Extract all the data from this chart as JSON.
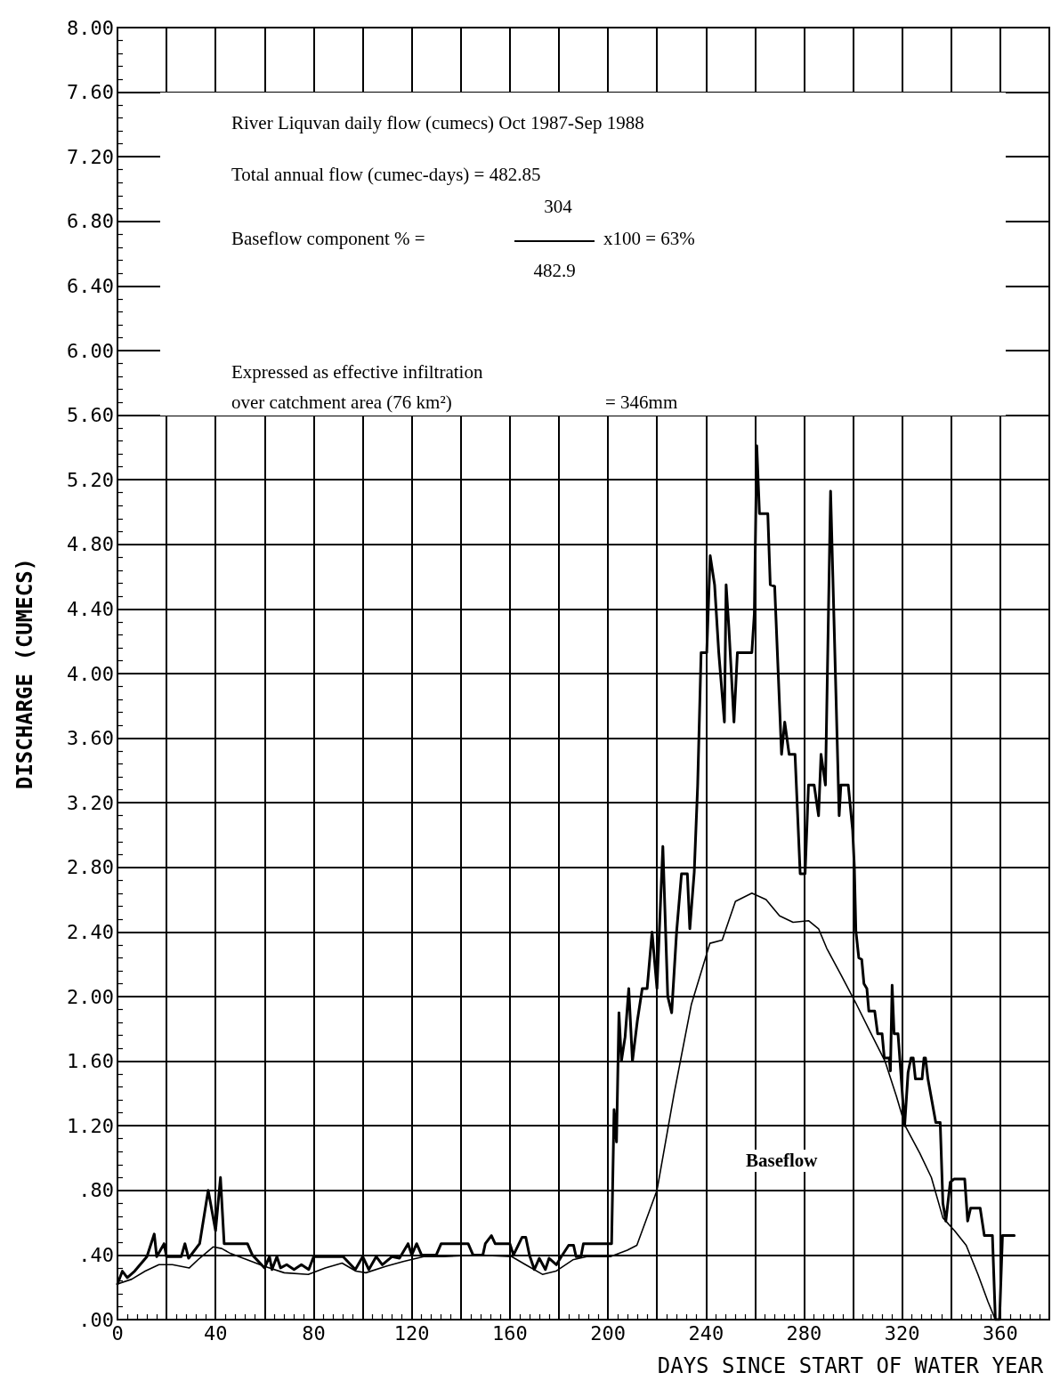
{
  "chart_data": {
    "type": "line",
    "xlabel": "DAYS SINCE START OF WATER YEAR",
    "ylabel": "DISCHARGE (CUMECS)",
    "annotations": [
      "River Liquvan daily flow (cumecs) Oct 1987-Sep 1988",
      "Total annual flow (cumec-days) = 482.85",
      "Baseflow component % =",
      "304",
      "482.9",
      "x100 = 63%",
      "Expressed as effective infiltration",
      "over catchment area (76 km²)",
      "= 346mm"
    ],
    "xlim": [
      0,
      380
    ],
    "xticks": [
      0,
      {
        "value": 20,
        "label": null
      },
      40,
      {
        "value": 60,
        "label": null
      },
      80,
      {
        "value": 100,
        "label": null
      },
      120,
      {
        "value": 140,
        "label": null
      },
      160,
      {
        "value": 180,
        "label": null
      },
      200,
      {
        "value": 220,
        "label": null
      },
      240,
      {
        "value": 260,
        "label": null
      },
      280,
      {
        "value": 300,
        "label": null
      },
      320,
      {
        "value": 340,
        "label": null
      },
      360,
      {
        "value": 380,
        "label": null
      }
    ],
    "ylim": [
      0,
      8
    ],
    "yticks": [
      {
        "value": 0,
        "label": ".00"
      },
      {
        "value": 0.4,
        "label": ".40"
      },
      {
        "value": 0.8,
        "label": ".80"
      },
      {
        "value": 1.2,
        "label": "1.20"
      },
      {
        "value": 1.6,
        "label": "1.60"
      },
      {
        "value": 2,
        "label": "2.00"
      },
      {
        "value": 2.4,
        "label": "2.40"
      },
      {
        "value": 2.8,
        "label": "2.80"
      },
      {
        "value": 3.2,
        "label": "3.20"
      },
      {
        "value": 3.6,
        "label": "3.60"
      },
      {
        "value": 4,
        "label": "4.00"
      },
      {
        "value": 4.4,
        "label": "4.40"
      },
      {
        "value": 4.8,
        "label": "4.80"
      },
      {
        "value": 5.2,
        "label": "5.20"
      },
      {
        "value": 5.6,
        "label": "5.60"
      },
      {
        "value": 6,
        "label": "6.00"
      },
      {
        "value": 6.4,
        "label": "6.40"
      },
      {
        "value": 6.8,
        "label": "6.80"
      },
      {
        "value": 7.2,
        "label": "7.20"
      },
      {
        "value": 7.6,
        "label": "7.60"
      },
      {
        "value": 8,
        "label": "8.00"
      }
    ],
    "grid": true,
    "marker": "none",
    "series": [
      {
        "color": "#000000",
        "x": [
          0,
          2,
          4,
          7,
          12,
          15,
          16,
          19,
          20,
          26,
          27.5,
          29,
          33.5,
          37,
          40,
          42,
          43.5,
          50,
          53,
          55,
          60,
          62,
          63,
          65,
          66.5,
          69,
          72,
          75,
          78,
          80,
          92,
          97,
          100,
          102.5,
          105.5,
          108,
          112,
          115,
          118.5,
          120,
          122,
          124,
          130,
          132,
          135,
          143,
          145,
          149,
          150,
          152.5,
          154,
          160,
          161.5,
          165,
          166.5,
          168,
          170,
          172,
          174.5,
          176,
          179,
          181,
          184,
          186,
          187,
          189,
          190,
          201.5,
          202.5,
          203.5,
          204.5,
          205.5,
          207,
          208.5,
          210,
          212,
          214,
          216,
          218,
          220,
          222.4,
          224.4,
          226,
          228,
          230,
          232.4,
          233.4,
          235.2,
          236.6,
          238,
          240.3,
          241.7,
          243.5,
          245.2,
          247.5,
          248.2,
          249.3,
          251.4,
          252.8,
          258.7,
          259.7,
          260.7,
          261.8,
          265.2,
          266.2,
          268,
          270.8,
          272.1,
          273.9,
          276.3,
          278.4,
          280.4,
          281.8,
          284.1,
          285.9,
          286.9,
          288.7,
          290.8,
          294.3,
          295,
          298,
          299.8,
          300.5,
          301.1,
          302.3,
          303.5,
          304.4,
          305.6,
          306.4,
          308.8,
          310,
          311.8,
          312.7,
          314.7,
          315.2,
          315.9,
          316.7,
          318.3,
          321,
          322.4,
          323.6,
          324.5,
          325.4,
          328.1,
          328.9,
          329.5,
          330.5,
          333.7,
          335.5,
          336.6,
          337.8,
          339.6,
          341.1,
          345.5,
          346.7,
          347.9,
          351.8,
          353.5,
          356.8,
          358,
          359.7,
          360.9,
          365.7
        ],
        "values": [
          0.22,
          0.3,
          0.26,
          0.3,
          0.39,
          0.53,
          0.39,
          0.47,
          0.39,
          0.39,
          0.47,
          0.38,
          0.47,
          0.8,
          0.55,
          0.88,
          0.47,
          0.47,
          0.47,
          0.4,
          0.32,
          0.39,
          0.31,
          0.39,
          0.32,
          0.34,
          0.31,
          0.34,
          0.31,
          0.39,
          0.39,
          0.31,
          0.39,
          0.31,
          0.39,
          0.34,
          0.39,
          0.38,
          0.47,
          0.4,
          0.47,
          0.4,
          0.4,
          0.47,
          0.47,
          0.47,
          0.4,
          0.4,
          0.47,
          0.52,
          0.47,
          0.47,
          0.4,
          0.51,
          0.51,
          0.4,
          0.31,
          0.38,
          0.31,
          0.38,
          0.34,
          0.39,
          0.46,
          0.46,
          0.39,
          0.39,
          0.47,
          0.47,
          1.3,
          1.1,
          1.9,
          1.6,
          1.75,
          2.05,
          1.6,
          1.85,
          2.05,
          2.05,
          2.4,
          2.05,
          2.93,
          2.0,
          1.9,
          2.4,
          2.76,
          2.76,
          2.42,
          2.77,
          3.31,
          4.13,
          4.13,
          4.73,
          4.55,
          4.13,
          3.7,
          4.55,
          4.29,
          3.7,
          4.13,
          4.13,
          4.37,
          5.41,
          4.99,
          4.99,
          4.55,
          4.54,
          3.5,
          3.7,
          3.5,
          3.5,
          2.76,
          2.76,
          3.31,
          3.31,
          3.12,
          3.5,
          3.31,
          5.13,
          3.12,
          3.31,
          3.31,
          3.03,
          2.8,
          2.41,
          2.24,
          2.23,
          2.08,
          2.05,
          1.91,
          1.91,
          1.77,
          1.77,
          1.62,
          1.62,
          1.54,
          2.07,
          1.77,
          1.77,
          1.2,
          1.53,
          1.62,
          1.62,
          1.49,
          1.49,
          1.62,
          1.62,
          1.49,
          1.22,
          1.22,
          0.72,
          0.61,
          0.85,
          0.87,
          0.87,
          0.61,
          0.69,
          0.69,
          0.52,
          0.52,
          0,
          0,
          0.52,
          0.52
        ]
      },
      {
        "name": "Baseflow",
        "color": "#000000",
        "x": [
          0,
          5.8,
          11.3,
          16.9,
          22.4,
          29.3,
          33.5,
          39,
          42.5,
          46,
          52.9,
          59.8,
          68,
          77.8,
          84.7,
          91.6,
          97.2,
          101.3,
          109.6,
          116.5,
          124.8,
          133,
          147,
          160.8,
          166.4,
          173.3,
          178.8,
          185.7,
          191.3,
          201,
          207.9,
          211.8,
          220,
          227,
          234,
          241.6,
          246.6,
          252,
          258.7,
          264.5,
          270,
          275.5,
          281.8,
          285.9,
          289.2,
          295.2,
          301.1,
          307,
          313,
          317.7,
          321.2,
          327.2,
          331.9,
          336.6,
          341.4,
          346.1,
          350.9,
          355,
          358
        ],
        "values": [
          0.22,
          0.25,
          0.3,
          0.34,
          0.34,
          0.32,
          0.38,
          0.45,
          0.44,
          0.41,
          0.37,
          0.33,
          0.29,
          0.28,
          0.32,
          0.35,
          0.3,
          0.29,
          0.33,
          0.36,
          0.39,
          0.39,
          0.4,
          0.39,
          0.34,
          0.28,
          0.3,
          0.37,
          0.39,
          0.39,
          0.43,
          0.46,
          0.8,
          1.4,
          1.95,
          2.33,
          2.35,
          2.59,
          2.64,
          2.6,
          2.5,
          2.46,
          2.47,
          2.42,
          2.3,
          2.13,
          1.96,
          1.78,
          1.6,
          1.38,
          1.2,
          1.03,
          0.88,
          0.63,
          0.55,
          0.46,
          0.28,
          0.11,
          0
        ]
      }
    ]
  }
}
